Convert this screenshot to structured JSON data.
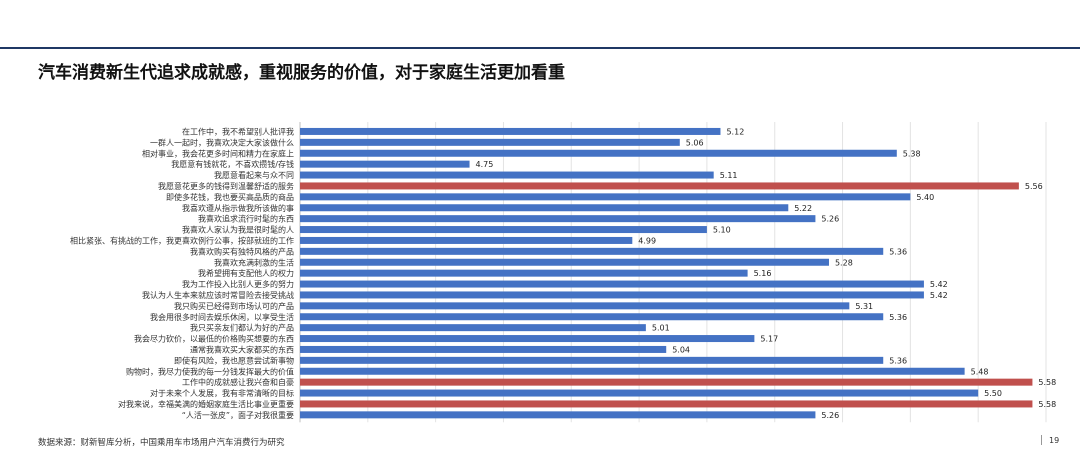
{
  "header": {
    "title": "汽车消费新生代追求成就感，重视服务的价值，对于家庭生活更加看重"
  },
  "footer": {
    "source": "数据来源：财新智库分析，中国乘用车市场用户汽车消费行为研究",
    "page": "19"
  },
  "colors": {
    "normal": "#4472c4",
    "highlight": "#c0504d"
  },
  "chart_data": {
    "type": "bar",
    "orientation": "horizontal",
    "xlim": [
      4.5,
      5.6
    ],
    "grid": true,
    "categories": [
      "在工作中，我不希望别人批评我",
      "一群人一起时，我喜欢决定大家该做什么",
      "相对事业，我会花更多时间和精力在家庭上",
      "我愿意有钱就花，不喜欢攒钱/存钱",
      "我愿意看起来与众不同",
      "我愿意花更多的钱得到温馨舒适的服务",
      "即使多花钱，我也要买高品质的商品",
      "我喜欢遵从指示做我所该做的事",
      "我喜欢追求流行时髦的东西",
      "我喜欢人家认为我是很时髦的人",
      "相比紧张、有挑战的工作，我更喜欢例行公事，按部就班的工作",
      "我喜欢购买有独特风格的产品",
      "我喜欢充满刺激的生活",
      "我希望拥有支配他人的权力",
      "我为工作投入比别人更多的努力",
      "我认为人生本来就应该时常冒险去接受挑战",
      "我只购买已经得到市场认可的产品",
      "我会用很多时间去娱乐休闲，以享受生活",
      "我只买亲友们都认为好的产品",
      "我会尽力砍价，以最低的价格购买想要的东西",
      "通常我喜欢买大家都买的东西",
      "即使有风险，我也愿意尝试新事物",
      "购物时，我尽力使我的每一分钱发挥最大的价值",
      "工作中的成就感让我兴奋和自豪",
      "对于未来个人发展，我有非常清晰的目标",
      "对我来说，幸福美满的婚姻家庭生活比事业更重要",
      "“人活一张皮”，面子对我很重要"
    ],
    "values": [
      5.12,
      5.06,
      5.38,
      4.75,
      5.11,
      5.56,
      5.4,
      5.22,
      5.26,
      5.1,
      4.99,
      5.36,
      5.28,
      5.16,
      5.42,
      5.42,
      5.31,
      5.36,
      5.01,
      5.17,
      5.04,
      5.36,
      5.48,
      5.58,
      5.5,
      5.58,
      5.26
    ],
    "value_labels": [
      "5.12",
      "5.06",
      "5.38",
      "4.75",
      "5.11",
      "5.56",
      "5.40",
      "5.22",
      "5.26",
      "5.10",
      "4.99",
      "5.36",
      "5.28",
      "5.16",
      "5.42",
      "5.42",
      "5.31",
      "5.36",
      "5.01",
      "5.17",
      "5.04",
      "5.36",
      "5.48",
      "5.58",
      "5.50",
      "5.58",
      "5.26"
    ],
    "highlighted": [
      5,
      23,
      25
    ]
  }
}
